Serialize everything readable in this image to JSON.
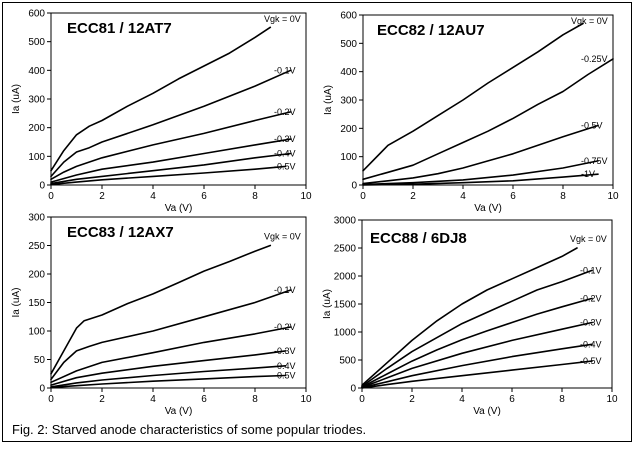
{
  "caption": "Fig. 2: Starved anode characteristics of some popular triodes.",
  "chart_data": [
    {
      "type": "line",
      "title": "ECC81 / 12AT7",
      "xlabel": "Va (V)",
      "ylabel": "Ia (uA)",
      "xlim": [
        0,
        10
      ],
      "ylim": [
        0,
        600
      ],
      "xticks": [
        0,
        2,
        4,
        6,
        8,
        10
      ],
      "yticks": [
        0,
        100,
        200,
        300,
        400,
        500,
        600
      ],
      "series": [
        {
          "name": "Vgk = 0V",
          "label": "Vgk = 0V",
          "x": [
            0,
            0.5,
            1,
            1.5,
            2,
            3,
            4,
            5,
            6,
            7,
            8,
            8.6
          ],
          "y": [
            50,
            120,
            175,
            205,
            225,
            275,
            320,
            370,
            415,
            460,
            515,
            550
          ]
        },
        {
          "name": "-0.1V",
          "label": "-0.1V",
          "x": [
            0,
            0.5,
            1,
            1.5,
            2,
            4,
            6,
            8,
            9.4
          ],
          "y": [
            30,
            80,
            115,
            130,
            150,
            210,
            275,
            345,
            400
          ]
        },
        {
          "name": "-0.2V",
          "label": "-0.2V",
          "x": [
            0,
            0.5,
            1,
            2,
            4,
            6,
            8,
            9.4
          ],
          "y": [
            20,
            45,
            65,
            95,
            140,
            180,
            225,
            255
          ]
        },
        {
          "name": "-0.3V",
          "label": "-0.3V",
          "x": [
            0,
            1,
            2,
            4,
            6,
            8,
            9.4
          ],
          "y": [
            10,
            35,
            55,
            80,
            110,
            140,
            160
          ]
        },
        {
          "name": "-0.4V",
          "label": "-0.4V",
          "x": [
            0,
            1,
            2,
            4,
            6,
            8,
            9.4
          ],
          "y": [
            5,
            20,
            30,
            50,
            70,
            95,
            110
          ]
        },
        {
          "name": "-0.5V",
          "label": "-0.5V",
          "x": [
            0,
            1,
            2,
            4,
            6,
            8,
            9.2
          ],
          "y": [
            2,
            10,
            18,
            30,
            42,
            55,
            65
          ]
        }
      ]
    },
    {
      "type": "line",
      "title": "ECC82 / 12AU7",
      "xlabel": "Va (V)",
      "ylabel": "Ia (uA)",
      "xlim": [
        0,
        10
      ],
      "ylim": [
        0,
        600
      ],
      "xticks": [
        0,
        2,
        4,
        6,
        8,
        10
      ],
      "yticks": [
        0,
        100,
        200,
        300,
        400,
        500,
        600
      ],
      "series": [
        {
          "name": "Vgk = 0V",
          "label": "Vgk = 0V",
          "x": [
            0,
            1,
            2,
            3,
            4,
            5,
            6,
            7,
            8,
            8.8
          ],
          "y": [
            50,
            140,
            190,
            245,
            300,
            360,
            415,
            470,
            530,
            570
          ]
        },
        {
          "name": "-0.25V",
          "label": "-0.25V",
          "x": [
            0,
            1,
            2,
            3,
            4,
            5,
            6,
            7,
            8,
            9,
            10
          ],
          "y": [
            20,
            45,
            70,
            110,
            150,
            190,
            235,
            285,
            330,
            390,
            445
          ]
        },
        {
          "name": "-0.5V",
          "label": "-0.5V",
          "x": [
            0,
            1,
            2,
            3,
            4,
            5,
            6,
            7,
            8,
            9.4
          ],
          "y": [
            5,
            15,
            25,
            40,
            60,
            85,
            110,
            140,
            170,
            210
          ]
        },
        {
          "name": "-0.75V",
          "label": "-0.75V",
          "x": [
            0,
            2,
            4,
            6,
            8,
            9.4
          ],
          "y": [
            2,
            8,
            18,
            35,
            60,
            85
          ]
        },
        {
          "name": "-1V",
          "label": "-1V",
          "x": [
            0,
            2,
            4,
            6,
            8,
            9.4
          ],
          "y": [
            0,
            3,
            8,
            15,
            28,
            38
          ]
        }
      ]
    },
    {
      "type": "line",
      "title": "ECC83 / 12AX7",
      "xlabel": "Va (V)",
      "ylabel": "Ia (uA)",
      "xlim": [
        0,
        10
      ],
      "ylim": [
        0,
        300
      ],
      "xticks": [
        0,
        2,
        4,
        6,
        8,
        10
      ],
      "yticks": [
        0,
        50,
        100,
        150,
        200,
        250,
        300
      ],
      "series": [
        {
          "name": "Vgk = 0V",
          "label": "Vgk = 0V",
          "x": [
            0,
            0.5,
            1,
            1.3,
            2,
            3,
            4,
            5,
            6,
            7,
            8,
            8.6
          ],
          "y": [
            25,
            65,
            105,
            118,
            128,
            148,
            165,
            185,
            205,
            222,
            240,
            250
          ]
        },
        {
          "name": "-0.1V",
          "label": "-0.1V",
          "x": [
            0,
            0.5,
            1,
            1.5,
            2,
            4,
            6,
            8,
            9.4
          ],
          "y": [
            15,
            45,
            65,
            73,
            80,
            100,
            125,
            150,
            172
          ]
        },
        {
          "name": "-0.2V",
          "label": "-0.2V",
          "x": [
            0,
            1,
            2,
            4,
            6,
            8,
            9.4
          ],
          "y": [
            10,
            30,
            45,
            62,
            80,
            95,
            107
          ]
        },
        {
          "name": "-0.3V",
          "label": "-0.3V",
          "x": [
            0,
            1,
            2,
            4,
            6,
            8,
            9.2
          ],
          "y": [
            5,
            18,
            26,
            38,
            48,
            58,
            65
          ]
        },
        {
          "name": "-0.4V",
          "label": "-0.4V",
          "x": [
            0,
            1,
            2,
            4,
            6,
            8,
            9.2
          ],
          "y": [
            2,
            9,
            14,
            22,
            29,
            35,
            39
          ]
        },
        {
          "name": "-0.5V",
          "label": "-0.5V",
          "x": [
            0,
            1,
            2,
            4,
            6,
            8,
            9.2
          ],
          "y": [
            1,
            4,
            7,
            12,
            16,
            20,
            22
          ]
        }
      ]
    },
    {
      "type": "line",
      "title": "ECC88 / 6DJ8",
      "xlabel": "Va (V)",
      "ylabel": "Ia (uA)",
      "xlim": [
        0,
        10
      ],
      "ylim": [
        0,
        3000
      ],
      "xticks": [
        0,
        2,
        4,
        6,
        8,
        10
      ],
      "yticks": [
        0,
        500,
        1000,
        1500,
        2000,
        2500,
        3000
      ],
      "series": [
        {
          "name": "Vgk = 0V",
          "label": "Vgk = 0V",
          "x": [
            0,
            1,
            2,
            3,
            4,
            5,
            6,
            7,
            8,
            8.6
          ],
          "y": [
            50,
            450,
            850,
            1200,
            1500,
            1750,
            1950,
            2150,
            2350,
            2500
          ]
        },
        {
          "name": "-0.1V",
          "label": "-0.1V",
          "x": [
            0,
            1,
            2,
            3,
            4,
            5,
            6,
            7,
            8,
            9.2
          ],
          "y": [
            30,
            350,
            650,
            900,
            1150,
            1350,
            1550,
            1750,
            1900,
            2100
          ]
        },
        {
          "name": "-0.2V",
          "label": "-0.2V",
          "x": [
            0,
            1,
            2,
            3,
            4,
            5,
            6,
            7,
            8,
            9.2
          ],
          "y": [
            20,
            250,
            480,
            680,
            860,
            1020,
            1170,
            1320,
            1450,
            1600
          ]
        },
        {
          "name": "-0.3V",
          "label": "-0.3V",
          "x": [
            0,
            1,
            2,
            4,
            6,
            8,
            9.2
          ],
          "y": [
            10,
            180,
            350,
            620,
            850,
            1050,
            1170
          ]
        },
        {
          "name": "-0.4V",
          "label": "-0.4V",
          "x": [
            0,
            1,
            2,
            4,
            6,
            8,
            9.2
          ],
          "y": [
            5,
            110,
            220,
            400,
            560,
            700,
            780
          ]
        },
        {
          "name": "-0.5V",
          "label": "-0.5V",
          "x": [
            0,
            1,
            2,
            4,
            6,
            8,
            9.2
          ],
          "y": [
            2,
            60,
            120,
            220,
            320,
            420,
            480
          ]
        }
      ]
    }
  ]
}
